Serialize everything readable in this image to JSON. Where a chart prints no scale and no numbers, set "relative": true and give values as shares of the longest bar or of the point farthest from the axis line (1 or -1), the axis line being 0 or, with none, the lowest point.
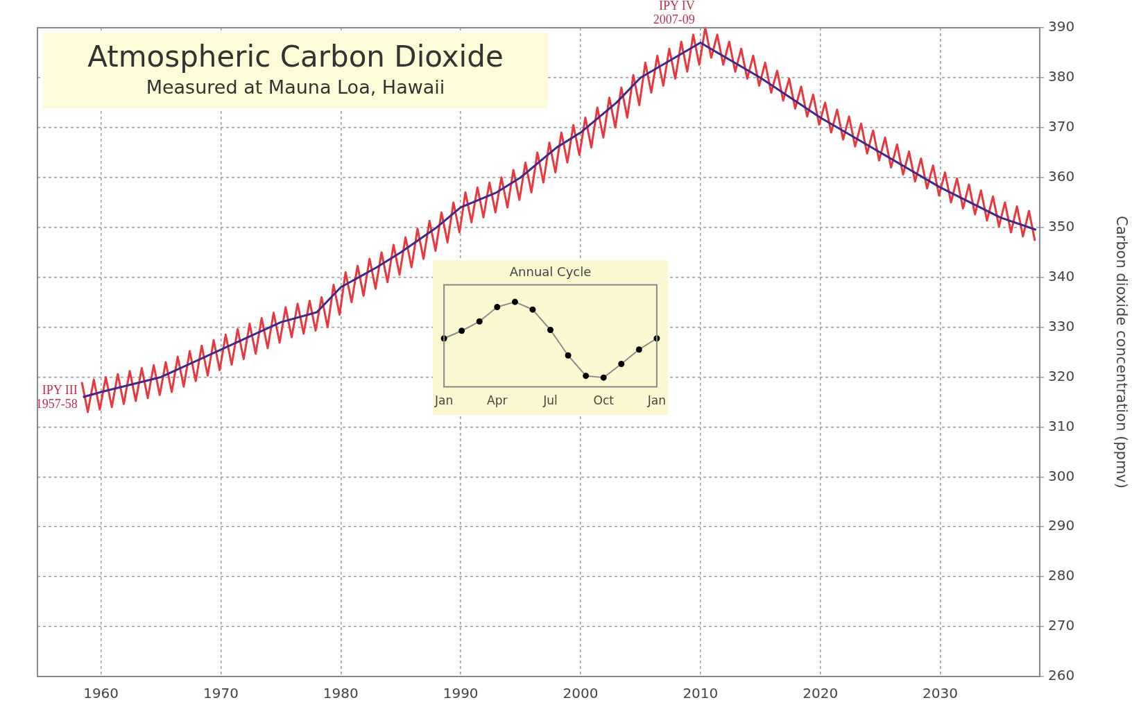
{
  "chart_data": [
    {
      "type": "line",
      "title": "Atmospheric Carbon Dioxide",
      "subtitle": "Measured at Mauna Loa, Hawaii",
      "ylabel": "Carbon dioxide concentration (ppmv)",
      "xlim": [
        1954.7,
        2038.3
      ],
      "xticks": [
        1960,
        1970,
        1980,
        1990,
        2000,
        2010,
        2020,
        2030
      ],
      "ylim": [
        260,
        390
      ],
      "yticks": [
        260,
        270,
        280,
        290,
        300,
        310,
        320,
        330,
        340,
        350,
        360,
        370,
        380,
        390
      ],
      "grid": true,
      "line_style": "solid",
      "series": [
        {
          "color": "#3a2a8c",
          "x": [
            1958.5,
            1960,
            1965,
            1970,
            1975,
            1978,
            1980,
            1983,
            1985,
            1988,
            1990,
            1993,
            1995,
            1998,
            2000,
            2003,
            2005,
            2010,
            2015,
            2020,
            2025,
            2030,
            2035,
            2038
          ],
          "values": [
            316,
            317,
            320,
            325.5,
            331,
            333,
            338,
            342,
            345,
            350,
            354,
            357,
            360,
            366,
            369,
            375,
            380,
            387,
            380,
            372,
            365,
            358,
            352,
            349.5
          ]
        },
        {
          "color": "#e8383d",
          "x": [
            1958.4,
            1958.9,
            1959.4,
            1959.9,
            1960.4,
            1960.9,
            1961.4,
            1961.9,
            1962.4,
            1962.9,
            1963.4,
            1963.9,
            1964.4,
            1964.9,
            1965.4,
            1965.9,
            1966.4,
            1966.9,
            1967.4,
            1967.9,
            1968.4,
            1968.9,
            1969.4,
            1969.9,
            1970.4,
            1970.9,
            1971.4,
            1971.9,
            1972.4,
            1972.9,
            1973.4,
            1973.9,
            1974.4,
            1974.9,
            1975.4,
            1975.9,
            1976.4,
            1976.9,
            1977.4,
            1977.9,
            1978.4,
            1978.9,
            1979.4,
            1979.9,
            1980.4,
            1980.9,
            1981.4,
            1981.9,
            1982.4,
            1982.9,
            1983.4,
            1983.9,
            1984.4,
            1984.9,
            1985.4,
            1985.9,
            1986.4,
            1986.9,
            1987.4,
            1987.9,
            1988.4,
            1988.9,
            1989.4,
            1989.9,
            1990.4,
            1990.9,
            1991.4,
            1991.9,
            1992.4,
            1992.9,
            1993.4,
            1993.9,
            1994.4,
            1994.9,
            1995.4,
            1995.9,
            1996.4,
            1996.9,
            1997.4,
            1997.9,
            1998.4,
            1998.9,
            1999.4,
            1999.9,
            2000.4,
            2000.9,
            2001.4,
            2001.9,
            2002.4,
            2002.9,
            2003.4,
            2003.9,
            2004.4,
            2004.9,
            2005.4,
            2005.9,
            2006.4,
            2006.9,
            2007.4,
            2007.9,
            2008.4,
            2008.9,
            2009.4,
            2009.9,
            2010.4,
            2010.9,
            2011.4,
            2011.9,
            2012.4,
            2012.9,
            2013.4,
            2013.9,
            2014.4,
            2014.9,
            2015.4,
            2015.9,
            2016.4,
            2016.9,
            2017.4,
            2017.9,
            2018.4,
            2018.9,
            2019.4,
            2019.9,
            2020.4,
            2020.9,
            2021.4,
            2021.9,
            2022.4,
            2022.9,
            2023.4,
            2023.9,
            2024.4,
            2024.9,
            2025.4,
            2025.9,
            2026.4,
            2026.9,
            2027.4,
            2027.9,
            2028.4,
            2028.9,
            2029.4,
            2029.9,
            2030.4,
            2030.9,
            2031.4,
            2031.9,
            2032.4,
            2032.9,
            2033.4,
            2033.9,
            2034.4,
            2034.9,
            2035.4,
            2035.9,
            2036.4,
            2036.9,
            2037.4,
            2037.9
          ],
          "values": [
            319,
            313,
            319.5,
            313.5,
            320,
            314,
            320.6,
            314.6,
            321.2,
            315.2,
            321.8,
            315.8,
            322.4,
            316.4,
            323,
            317,
            324.1,
            318.1,
            325.2,
            319.2,
            326.3,
            320.3,
            327.4,
            321.4,
            328.5,
            322.5,
            329.6,
            323.6,
            330.7,
            324.7,
            331.8,
            325.8,
            332.9,
            326.9,
            334,
            328,
            334.7,
            328.7,
            335.3,
            329.3,
            336,
            330,
            338.5,
            332.5,
            341,
            335,
            342.3,
            336.3,
            343.7,
            337.7,
            345,
            339,
            346.5,
            340.5,
            348,
            342,
            349.7,
            343.7,
            351.3,
            345.3,
            353,
            347,
            355,
            349,
            357,
            351,
            358,
            352,
            359,
            353,
            360,
            354,
            361.5,
            355.5,
            363,
            357,
            365,
            359,
            367,
            361,
            369,
            363,
            370.5,
            364.5,
            372,
            366,
            374,
            368,
            376,
            370,
            378,
            372,
            380.5,
            374.5,
            383,
            377,
            384.4,
            378.4,
            385.8,
            379.8,
            387.2,
            381.2,
            388.6,
            382.6,
            390,
            384,
            388.6,
            382.6,
            387.2,
            381.2,
            385.8,
            379.8,
            384.4,
            378.4,
            383,
            377,
            381.4,
            375.4,
            379.8,
            373.8,
            378.2,
            372.2,
            376.6,
            370.6,
            375,
            369,
            373.6,
            367.6,
            372.2,
            366.2,
            370.8,
            364.8,
            369.4,
            363.4,
            368,
            362,
            366.6,
            360.6,
            365.2,
            359.2,
            363.8,
            357.8,
            362.4,
            356.4,
            361,
            355,
            359.8,
            353.8,
            358.6,
            352.6,
            357.4,
            351.4,
            356.2,
            350.2,
            355,
            349,
            354.2,
            348.2,
            353.3,
            347.3
          ]
        }
      ],
      "annotations": [
        {
          "text": "IPY III 1957-58",
          "x": 1958.5,
          "y": 316
        },
        {
          "text": "IPY IV 2007-09",
          "x": 2010,
          "y": 387
        }
      ]
    },
    {
      "type": "line",
      "title": "Annual Cycle",
      "relative": true,
      "marker": "circle",
      "line_style": "solid",
      "categories": [
        "Jan",
        null,
        null,
        "Apr",
        null,
        null,
        "Jul",
        null,
        null,
        "Oct",
        null,
        null,
        "Jan"
      ],
      "series": [
        {
          "color": "#8c8c8c",
          "colors": [
            "#000000",
            "#000000",
            "#000000",
            "#000000",
            "#000000",
            "#000000",
            "#000000",
            "#000000",
            "#000000",
            "#000000",
            "#000000",
            "#000000",
            "#000000"
          ],
          "values": [
            0.57,
            0.66,
            0.77,
            0.94,
            1,
            0.91,
            0.67,
            0.37,
            0.13,
            0.11,
            0.27,
            0.44,
            0.57
          ]
        }
      ]
    }
  ]
}
